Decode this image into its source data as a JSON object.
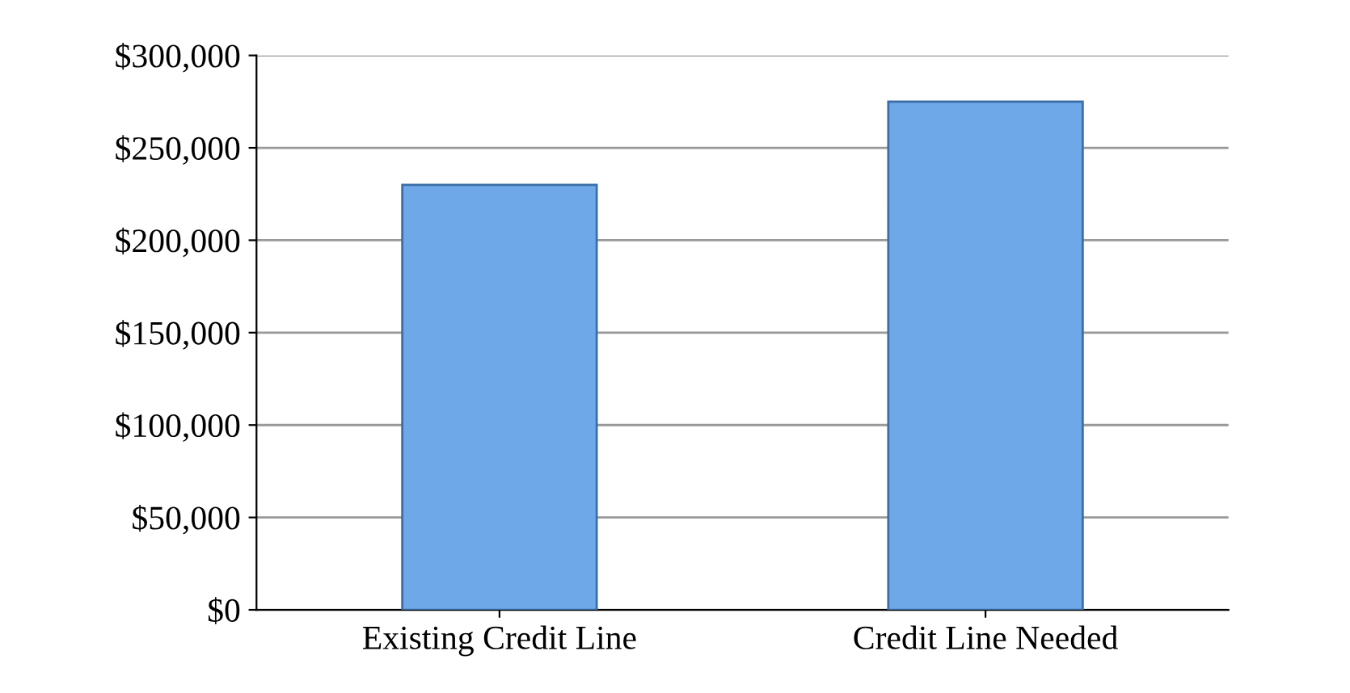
{
  "chart_data": {
    "type": "bar",
    "categories": [
      "Existing Credit Line",
      "Credit Line Needed"
    ],
    "values": [
      230000,
      275000
    ],
    "color": "#6fa8e8",
    "ylim": [
      0,
      300000
    ],
    "yticks": [
      {
        "value": 0,
        "label": "$0"
      },
      {
        "value": 50000,
        "label": "$50,000"
      },
      {
        "value": 100000,
        "label": "$100,000"
      },
      {
        "value": 150000,
        "label": "$150,000"
      },
      {
        "value": 200000,
        "label": "$200,000"
      },
      {
        "value": 250000,
        "label": "$250,000"
      },
      {
        "value": 300000,
        "label": "$300,000"
      }
    ],
    "grid": "y"
  }
}
